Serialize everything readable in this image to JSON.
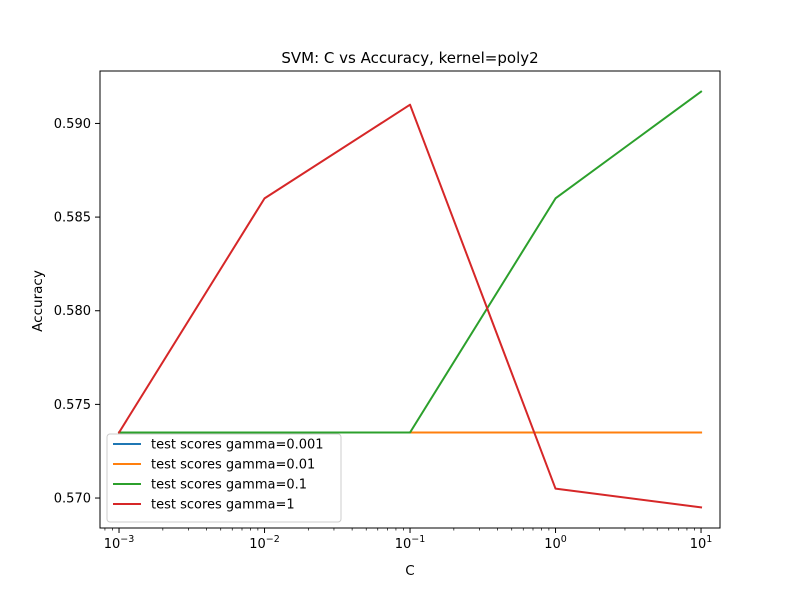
{
  "chart_data": {
    "type": "line",
    "title": "SVM: C vs Accuracy, kernel=poly2",
    "xlabel": "C",
    "ylabel": "Accuracy",
    "xscale": "log",
    "x": [
      0.001,
      0.01,
      0.1,
      1,
      10
    ],
    "x_tick_labels": [
      {
        "base": "10",
        "exp": "−3",
        "value": 0.001
      },
      {
        "base": "10",
        "exp": "−2",
        "value": 0.01
      },
      {
        "base": "10",
        "exp": "−1",
        "value": 0.1
      },
      {
        "base": "10",
        "exp": "0",
        "value": 1
      },
      {
        "base": "10",
        "exp": "1",
        "value": 10
      }
    ],
    "y_ticks": [
      {
        "value": 0.57,
        "label": "0.570"
      },
      {
        "value": 0.575,
        "label": "0.575"
      },
      {
        "value": 0.58,
        "label": "0.580"
      },
      {
        "value": 0.585,
        "label": "0.585"
      },
      {
        "value": 0.59,
        "label": "0.590"
      }
    ],
    "xlim": [
      0.00074,
      13.5
    ],
    "ylim": [
      0.5684,
      0.5928
    ],
    "grid": false,
    "legend_position": "lower-left",
    "series": [
      {
        "name": "test scores gamma=0.001",
        "color": "#1f77b4",
        "values": [
          0.5735,
          0.5735,
          0.5735,
          0.5735,
          0.5735
        ]
      },
      {
        "name": "test scores gamma=0.01",
        "color": "#ff7f0e",
        "values": [
          0.5735,
          0.5735,
          0.5735,
          0.5735,
          0.5735
        ]
      },
      {
        "name": "test scores gamma=0.1",
        "color": "#2ca02c",
        "values": [
          0.5735,
          0.5735,
          0.5735,
          0.586,
          0.5917
        ]
      },
      {
        "name": "test scores gamma=1",
        "color": "#d62728",
        "values": [
          0.5735,
          0.586,
          0.591,
          0.5705,
          0.5695
        ]
      }
    ]
  }
}
